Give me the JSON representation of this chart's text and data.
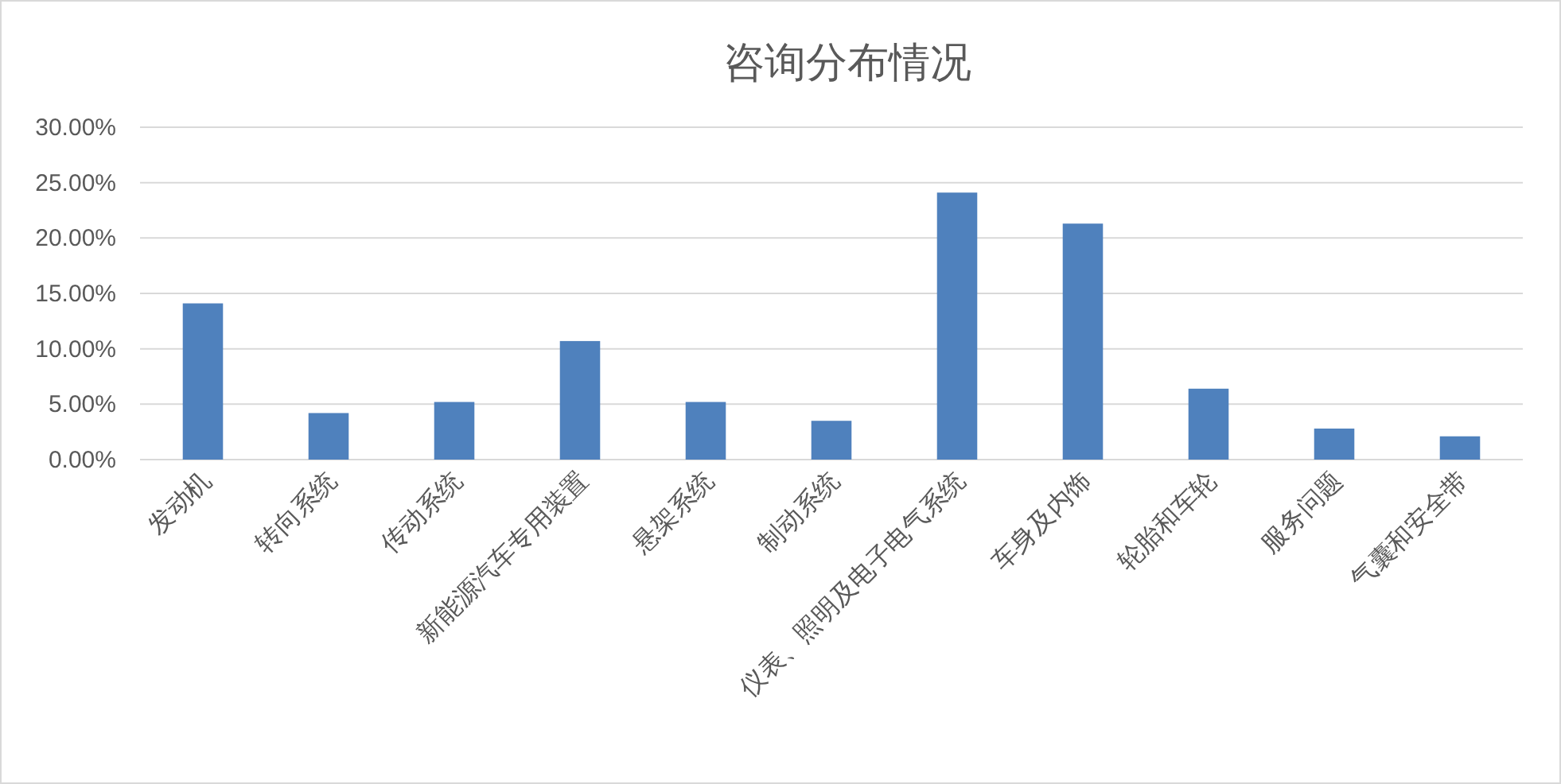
{
  "chart_data": {
    "type": "bar",
    "title": "咨询分布情况",
    "categories": [
      "发动机",
      "转向系统",
      "传动系统",
      "新能源汽车专用装置",
      "悬架系统",
      "制动系统",
      "仪表、照明及电子电气系统",
      "车身及内饰",
      "轮胎和车轮",
      "服务问题",
      "气囊和安全带"
    ],
    "values": [
      14.1,
      4.2,
      5.2,
      10.7,
      5.2,
      3.5,
      24.1,
      21.3,
      6.4,
      2.8,
      2.1
    ],
    "color": "#4f81bd",
    "ylim": [
      0,
      30
    ],
    "yticks": [
      {
        "value": 0,
        "label": "0.00%"
      },
      {
        "value": 5,
        "label": "5.00%"
      },
      {
        "value": 10,
        "label": "10.00%"
      },
      {
        "value": 15,
        "label": "15.00%"
      },
      {
        "value": 20,
        "label": "20.00%"
      },
      {
        "value": 25,
        "label": "25.00%"
      },
      {
        "value": 30,
        "label": "30.00%"
      }
    ],
    "grid": "y"
  }
}
